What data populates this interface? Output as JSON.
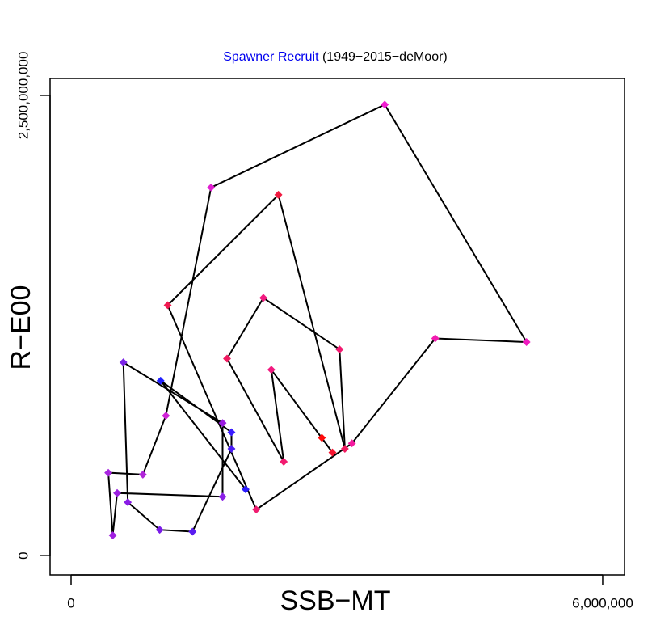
{
  "chart_data": {
    "type": "line",
    "title_part1": "Spawner Recruit",
    "title_part2": "(1949−2015−deMoor)",
    "title_part1_color": "#0000ee",
    "x_label": "SSB−MT",
    "y_label": "R−E00",
    "xlim": [
      -237100,
      6246500
    ],
    "ylim": [
      -105000000,
      2592000000
    ],
    "xticks": [
      0,
      {
        "value": 6000000,
        "label": "6,000,000"
      }
    ],
    "yticks": [
      0,
      {
        "value": 2500000000,
        "label": "2,500,000,000"
      }
    ],
    "line_color": "#000000",
    "series": [
      {
        "x": [
          1970000,
          1010000,
          1810000,
          1810000,
          1370000,
          1000000,
          640000,
          590000,
          1710000,
          1710000,
          520000,
          470000,
          420000,
          810000,
          1070000,
          1580000,
          3540000,
          5140000,
          4110000,
          3170000,
          2090000,
          1090000,
          2340000,
          3090000,
          3030000,
          2170000,
          1760000,
          2400000,
          2260000,
          2950000,
          2830000
        ],
        "values": [
          360000000,
          950000000,
          670000000,
          580000000,
          130000000,
          140000000,
          290000000,
          1050000000,
          720000000,
          320000000,
          340000000,
          110000000,
          450000000,
          440000000,
          760000000,
          2000000000,
          2450000000,
          1160000000,
          1180000000,
          610000000,
          250000000,
          1360000000,
          1960000000,
          580000000,
          1120000000,
          1400000000,
          1070000000,
          510000000,
          1010000000,
          560000000,
          640000000
        ],
        "colors": [
          "#2b1bff",
          "#2020ff",
          "#3a1cff",
          "#4a1cf5",
          "#5a1cf0",
          "#7a1ce8",
          "#8a1ce6",
          "#7a24e6",
          "#9a1ce0",
          "#8a20e6",
          "#9a20e0",
          "#a020e0",
          "#a826e0",
          "#b026d8",
          "#d022d8",
          "#e020d0",
          "#f01cd0",
          "#f01cc0",
          "#f21cb0",
          "#f41ca0",
          "#f01c70",
          "#f01a50",
          "#f01a40",
          "#f21a60",
          "#f21a70",
          "#f21a80",
          "#f01a60",
          "#f21a70",
          "#f21a80",
          "#f61430",
          "#ff0a0a"
        ]
      }
    ]
  }
}
